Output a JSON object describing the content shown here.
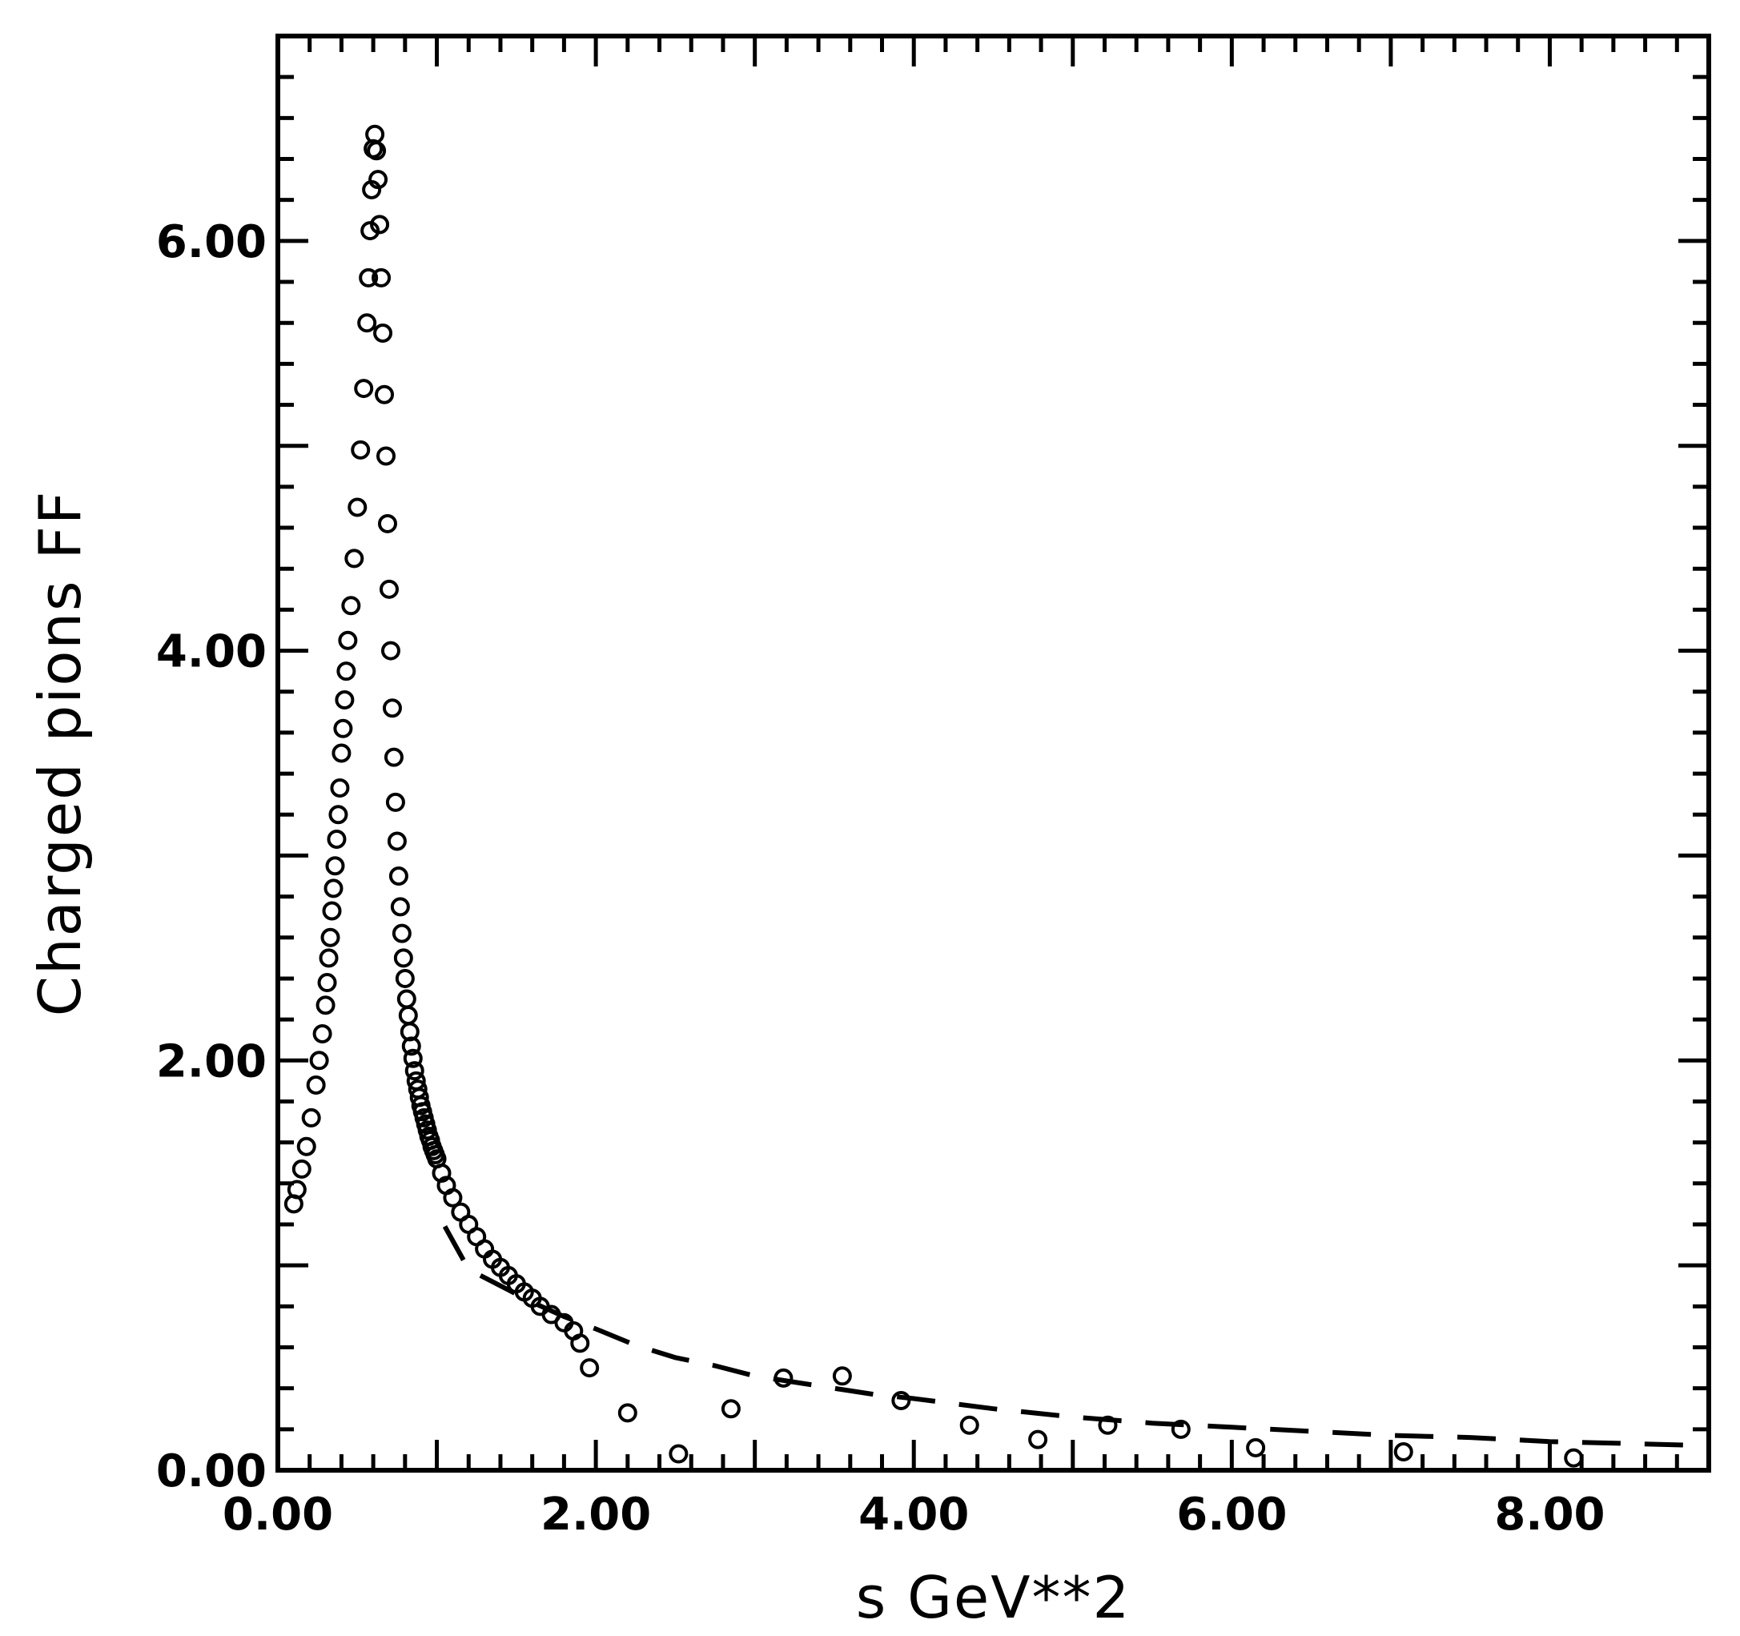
{
  "chart_data": {
    "type": "scatter",
    "title": "",
    "xlabel": "s  GeV**2",
    "ylabel": "Charged  pions  FF",
    "xlim": [
      0,
      9
    ],
    "ylim": [
      0,
      7
    ],
    "x_ticks": [
      {
        "value": 0,
        "label": "0.00"
      },
      {
        "value": 2,
        "label": "2.00"
      },
      {
        "value": 4,
        "label": "4.00"
      },
      {
        "value": 6,
        "label": "6.00"
      },
      {
        "value": 8,
        "label": "8.00"
      }
    ],
    "y_ticks": [
      {
        "value": 0,
        "label": "0.00"
      },
      {
        "value": 2,
        "label": "2.00"
      },
      {
        "value": 4,
        "label": "4.00"
      },
      {
        "value": 6,
        "label": "6.00"
      }
    ],
    "grid": false,
    "legend": "none",
    "series": [
      {
        "style": "circles",
        "x": [
          0.1,
          0.12,
          0.15,
          0.18,
          0.21,
          0.24,
          0.26,
          0.28,
          0.3,
          0.31,
          0.32,
          0.33,
          0.34,
          0.35,
          0.36,
          0.37,
          0.38,
          0.39,
          0.4,
          0.41,
          0.42,
          0.43,
          0.44,
          0.46,
          0.48,
          0.5,
          0.52,
          0.54,
          0.56,
          0.57,
          0.58,
          0.59,
          0.6,
          0.61,
          0.62,
          0.63,
          0.64,
          0.65,
          0.66,
          0.67,
          0.68,
          0.69,
          0.7,
          0.71,
          0.72,
          0.73,
          0.74,
          0.75,
          0.76,
          0.77,
          0.78,
          0.79,
          0.8,
          0.81,
          0.82,
          0.83,
          0.84,
          0.85,
          0.86,
          0.87,
          0.88,
          0.89,
          0.9,
          0.91,
          0.92,
          0.93,
          0.94,
          0.95,
          0.96,
          0.97,
          0.98,
          0.99,
          1.0,
          1.03,
          1.06,
          1.1,
          1.15,
          1.2,
          1.25,
          1.3,
          1.35,
          1.4,
          1.45,
          1.5,
          1.55,
          1.6,
          1.65,
          1.72,
          1.8,
          1.86,
          1.9,
          1.96,
          2.2,
          2.52,
          2.85,
          3.18,
          3.55,
          3.92,
          4.35,
          4.78,
          5.22,
          5.68,
          6.15,
          7.08,
          8.15
        ],
        "y": [
          1.3,
          1.37,
          1.47,
          1.58,
          1.72,
          1.88,
          2.0,
          2.13,
          2.27,
          2.38,
          2.5,
          2.6,
          2.73,
          2.84,
          2.95,
          3.08,
          3.2,
          3.33,
          3.5,
          3.62,
          3.76,
          3.9,
          4.05,
          4.22,
          4.45,
          4.7,
          4.98,
          5.28,
          5.6,
          5.82,
          6.05,
          6.25,
          6.45,
          6.52,
          6.44,
          6.3,
          6.08,
          5.82,
          5.55,
          5.25,
          4.95,
          4.62,
          4.3,
          4.0,
          3.72,
          3.48,
          3.26,
          3.07,
          2.9,
          2.75,
          2.62,
          2.5,
          2.4,
          2.3,
          2.22,
          2.14,
          2.07,
          2.01,
          1.95,
          1.9,
          1.86,
          1.82,
          1.78,
          1.75,
          1.72,
          1.69,
          1.66,
          1.63,
          1.61,
          1.58,
          1.56,
          1.54,
          1.52,
          1.45,
          1.39,
          1.33,
          1.26,
          1.2,
          1.14,
          1.08,
          1.03,
          0.99,
          0.95,
          0.91,
          0.87,
          0.84,
          0.8,
          0.76,
          0.72,
          0.68,
          0.62,
          0.5,
          0.28,
          0.08,
          0.3,
          0.45,
          0.46,
          0.34,
          0.22,
          0.15,
          0.22,
          0.2,
          0.11,
          0.09,
          0.06
        ]
      },
      {
        "style": "dashed-line",
        "x": [
          1.05,
          1.2,
          1.4,
          1.6,
          1.8,
          2.0,
          2.25,
          2.5,
          2.75,
          3.0,
          3.25,
          3.5,
          3.75,
          4.0,
          4.5,
          5.0,
          5.5,
          6.0,
          6.5,
          7.0,
          7.5,
          8.0,
          8.5,
          9.0
        ],
        "y": [
          1.19,
          0.98,
          0.9,
          0.82,
          0.75,
          0.69,
          0.61,
          0.55,
          0.51,
          0.46,
          0.43,
          0.4,
          0.37,
          0.35,
          0.3,
          0.26,
          0.23,
          0.21,
          0.19,
          0.17,
          0.16,
          0.14,
          0.13,
          0.12
        ]
      }
    ]
  }
}
